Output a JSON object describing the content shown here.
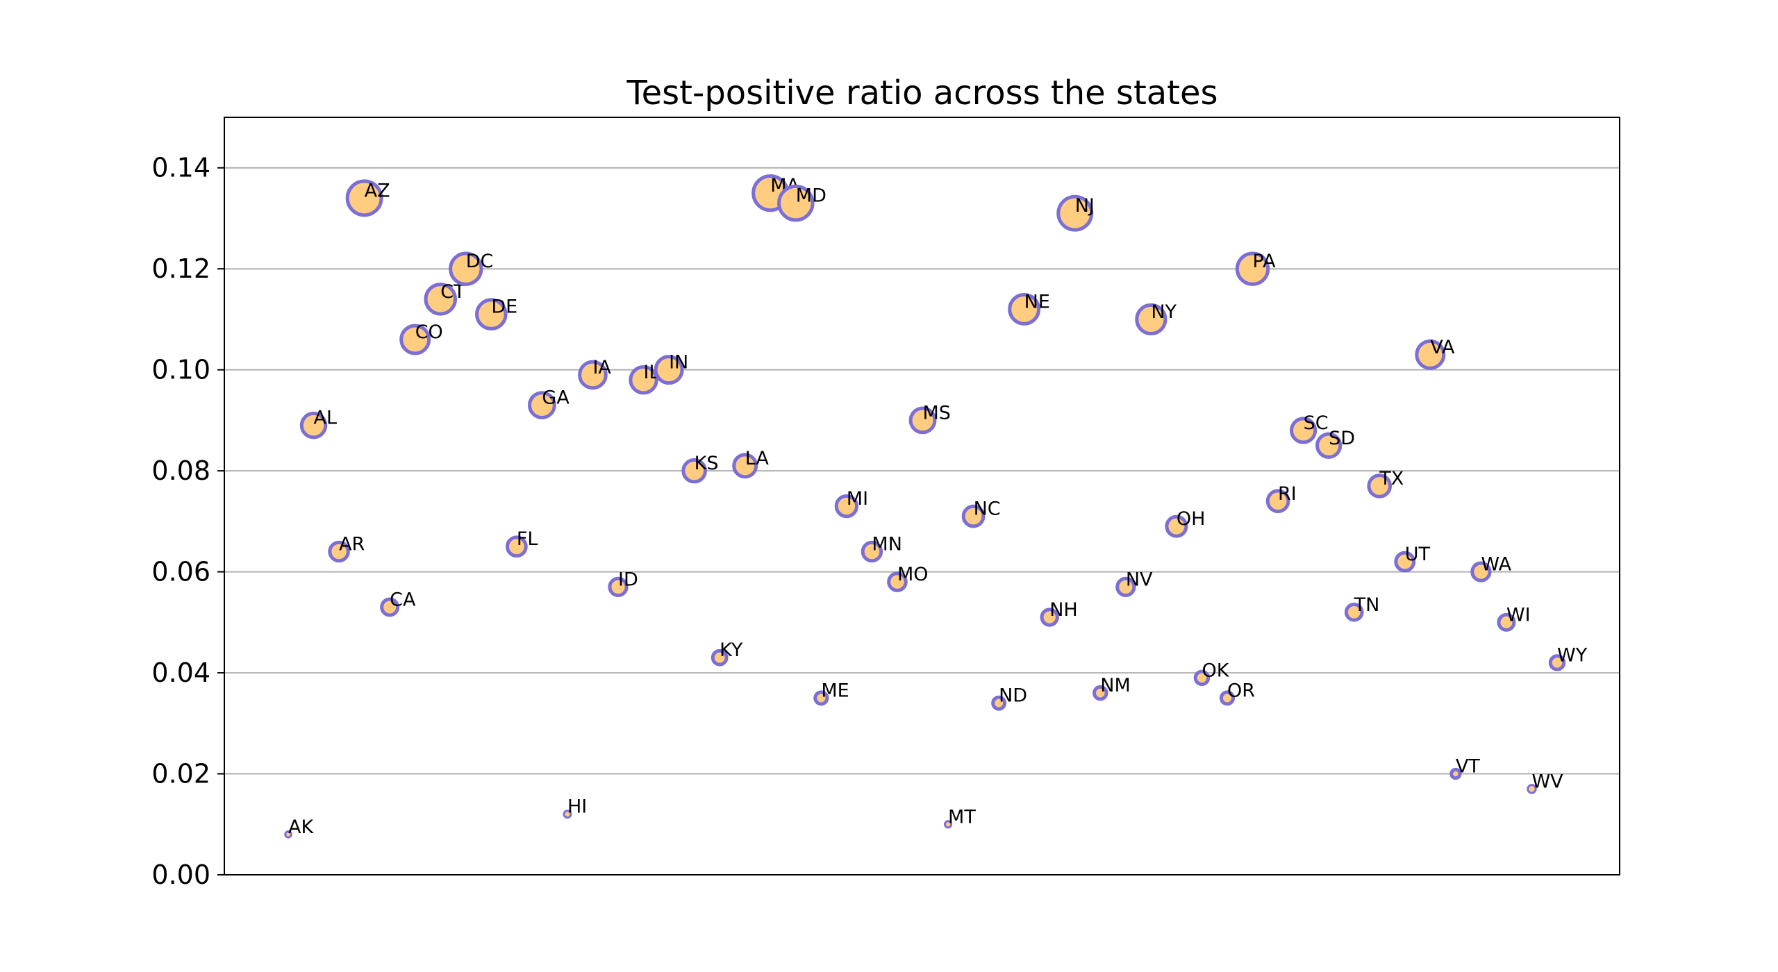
{
  "chart_data": {
    "type": "scatter",
    "title": "Test-positive ratio across the states",
    "xlabel": "",
    "ylabel": "",
    "ylim": [
      0,
      0.15
    ],
    "yticks": [
      "0.00",
      "0.02",
      "0.04",
      "0.06",
      "0.08",
      "0.10",
      "0.12",
      "0.14"
    ],
    "ytick_values": [
      0,
      0.02,
      0.04,
      0.06,
      0.08,
      0.1,
      0.12,
      0.14
    ],
    "grid": "horizontal",
    "marker_fill": "#ffcc80",
    "marker_edge": "#7b6fd6",
    "points": [
      {
        "label": "AK",
        "y": 0.008
      },
      {
        "label": "AL",
        "y": 0.089
      },
      {
        "label": "AR",
        "y": 0.064
      },
      {
        "label": "AZ",
        "y": 0.134
      },
      {
        "label": "CA",
        "y": 0.053
      },
      {
        "label": "CO",
        "y": 0.106
      },
      {
        "label": "CT",
        "y": 0.114
      },
      {
        "label": "DC",
        "y": 0.12
      },
      {
        "label": "DE",
        "y": 0.111
      },
      {
        "label": "FL",
        "y": 0.065
      },
      {
        "label": "GA",
        "y": 0.093
      },
      {
        "label": "HI",
        "y": 0.012
      },
      {
        "label": "IA",
        "y": 0.099
      },
      {
        "label": "ID",
        "y": 0.057
      },
      {
        "label": "IL",
        "y": 0.098
      },
      {
        "label": "IN",
        "y": 0.1
      },
      {
        "label": "KS",
        "y": 0.08
      },
      {
        "label": "KY",
        "y": 0.043
      },
      {
        "label": "LA",
        "y": 0.081
      },
      {
        "label": "MA",
        "y": 0.135
      },
      {
        "label": "MD",
        "y": 0.133
      },
      {
        "label": "ME",
        "y": 0.035
      },
      {
        "label": "MI",
        "y": 0.073
      },
      {
        "label": "MN",
        "y": 0.064
      },
      {
        "label": "MO",
        "y": 0.058
      },
      {
        "label": "MS",
        "y": 0.09
      },
      {
        "label": "MT",
        "y": 0.01
      },
      {
        "label": "NC",
        "y": 0.071
      },
      {
        "label": "ND",
        "y": 0.034
      },
      {
        "label": "NE",
        "y": 0.112
      },
      {
        "label": "NH",
        "y": 0.051
      },
      {
        "label": "NJ",
        "y": 0.131
      },
      {
        "label": "NM",
        "y": 0.036
      },
      {
        "label": "NV",
        "y": 0.057
      },
      {
        "label": "NY",
        "y": 0.11
      },
      {
        "label": "OH",
        "y": 0.069
      },
      {
        "label": "OK",
        "y": 0.039
      },
      {
        "label": "OR",
        "y": 0.035
      },
      {
        "label": "PA",
        "y": 0.12
      },
      {
        "label": "RI",
        "y": 0.074
      },
      {
        "label": "SC",
        "y": 0.088
      },
      {
        "label": "SD",
        "y": 0.085
      },
      {
        "label": "TN",
        "y": 0.052
      },
      {
        "label": "TX",
        "y": 0.077
      },
      {
        "label": "UT",
        "y": 0.062
      },
      {
        "label": "VA",
        "y": 0.103
      },
      {
        "label": "VT",
        "y": 0.02
      },
      {
        "label": "WA",
        "y": 0.06
      },
      {
        "label": "WI",
        "y": 0.05
      },
      {
        "label": "WV",
        "y": 0.017
      },
      {
        "label": "WY",
        "y": 0.042
      }
    ]
  }
}
